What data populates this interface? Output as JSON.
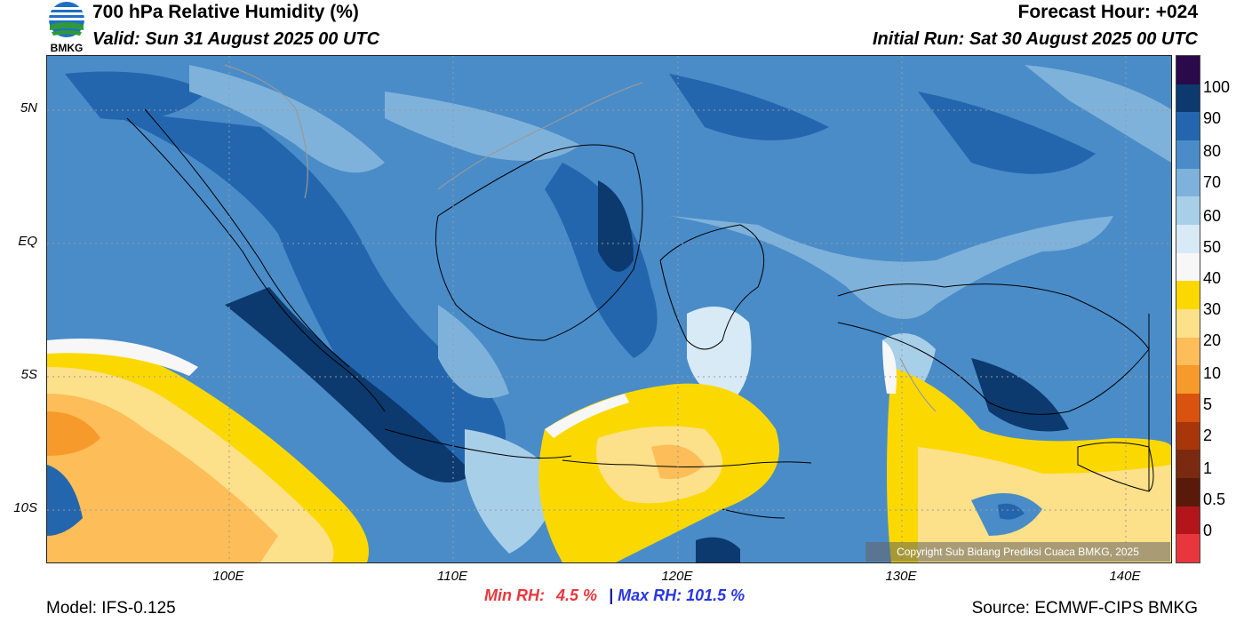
{
  "header": {
    "title": "700 hPa Relative Humidity (%)",
    "valid": "Valid: Sun 31 August 2025 00 UTC",
    "forecast_hour": "Forecast Hour: +024",
    "initial_run": "Initial Run: Sat 30 August 2025 00 UTC"
  },
  "logo": {
    "text": "BMKG"
  },
  "axes": {
    "lat_labels": [
      "5N",
      "EQ",
      "5S",
      "10S"
    ],
    "lon_labels": [
      "100E",
      "110E",
      "120E",
      "130E",
      "140E"
    ]
  },
  "stats": {
    "min_label": "Min RH:",
    "min_value": "4.5 %",
    "separator": "|",
    "max_label": "Max RH:",
    "max_value": "101.5 %"
  },
  "footer": {
    "model": "Model: IFS-0.125",
    "source": "Source: ECMWF-CIPS BMKG"
  },
  "copyright": "Copyright Sub Bidang Prediksi Cuaca BMKG, 2025",
  "colorbar": {
    "labels": [
      "100",
      "90",
      "80",
      "70",
      "60",
      "50",
      "40",
      "30",
      "20",
      "10",
      "5",
      "2",
      "1",
      "0.5",
      "0"
    ],
    "colors": [
      "#2a0a4a",
      "#0c3a6e",
      "#2366ae",
      "#4a8cc8",
      "#7fb2da",
      "#a8cfe8",
      "#d8eaf5",
      "#f7f7f7",
      "#fbd900",
      "#fde08a",
      "#fdbd58",
      "#f79a2c",
      "#d9520e",
      "#a8360b",
      "#7a2a10",
      "#5a1a0a",
      "#b2161a",
      "#e8373c"
    ]
  }
}
